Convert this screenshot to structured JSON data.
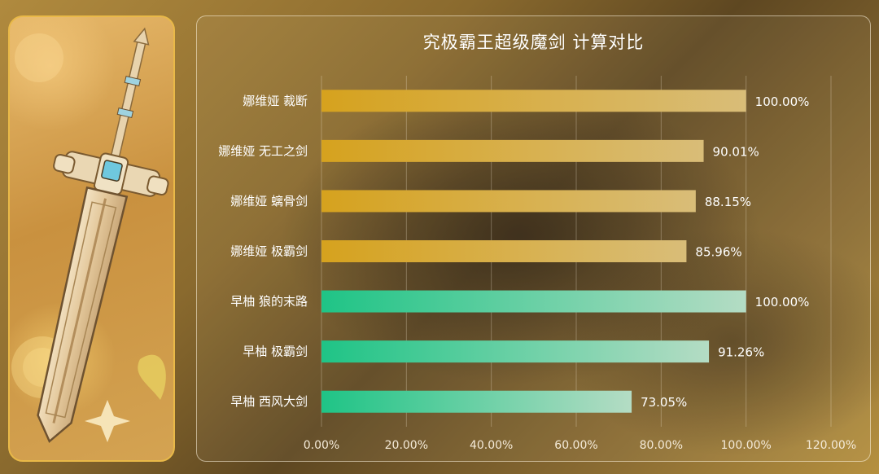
{
  "chart_data": {
    "type": "bar",
    "orientation": "horizontal",
    "title": "究极霸王超级魔剑 计算对比",
    "categories": [
      "娜维娅 裁断",
      "娜维娅 无工之剑",
      "娜维娅 螭骨剑",
      "娜维娅 极霸剑",
      "早柚 狼的末路",
      "早柚 极霸剑",
      "早柚 西风大剑"
    ],
    "values": [
      100.0,
      90.01,
      88.15,
      85.96,
      100.0,
      91.26,
      73.05
    ],
    "value_labels": [
      "100.00%",
      "90.01%",
      "88.15%",
      "85.96%",
      "100.00%",
      "91.26%",
      "73.05%"
    ],
    "groups": [
      "navia",
      "navia",
      "navia",
      "navia",
      "sayu",
      "sayu",
      "sayu"
    ],
    "group_colors": {
      "navia": [
        "#d6a21e",
        "#d9bd78"
      ],
      "sayu": [
        "#1fc486",
        "#b4dcc4"
      ]
    },
    "xlim": [
      0,
      120
    ],
    "xticks": [
      "0.00%",
      "20.00%",
      "40.00%",
      "60.00%",
      "80.00%",
      "100.00%",
      "120.00%"
    ],
    "grid": true,
    "legend": "none"
  }
}
